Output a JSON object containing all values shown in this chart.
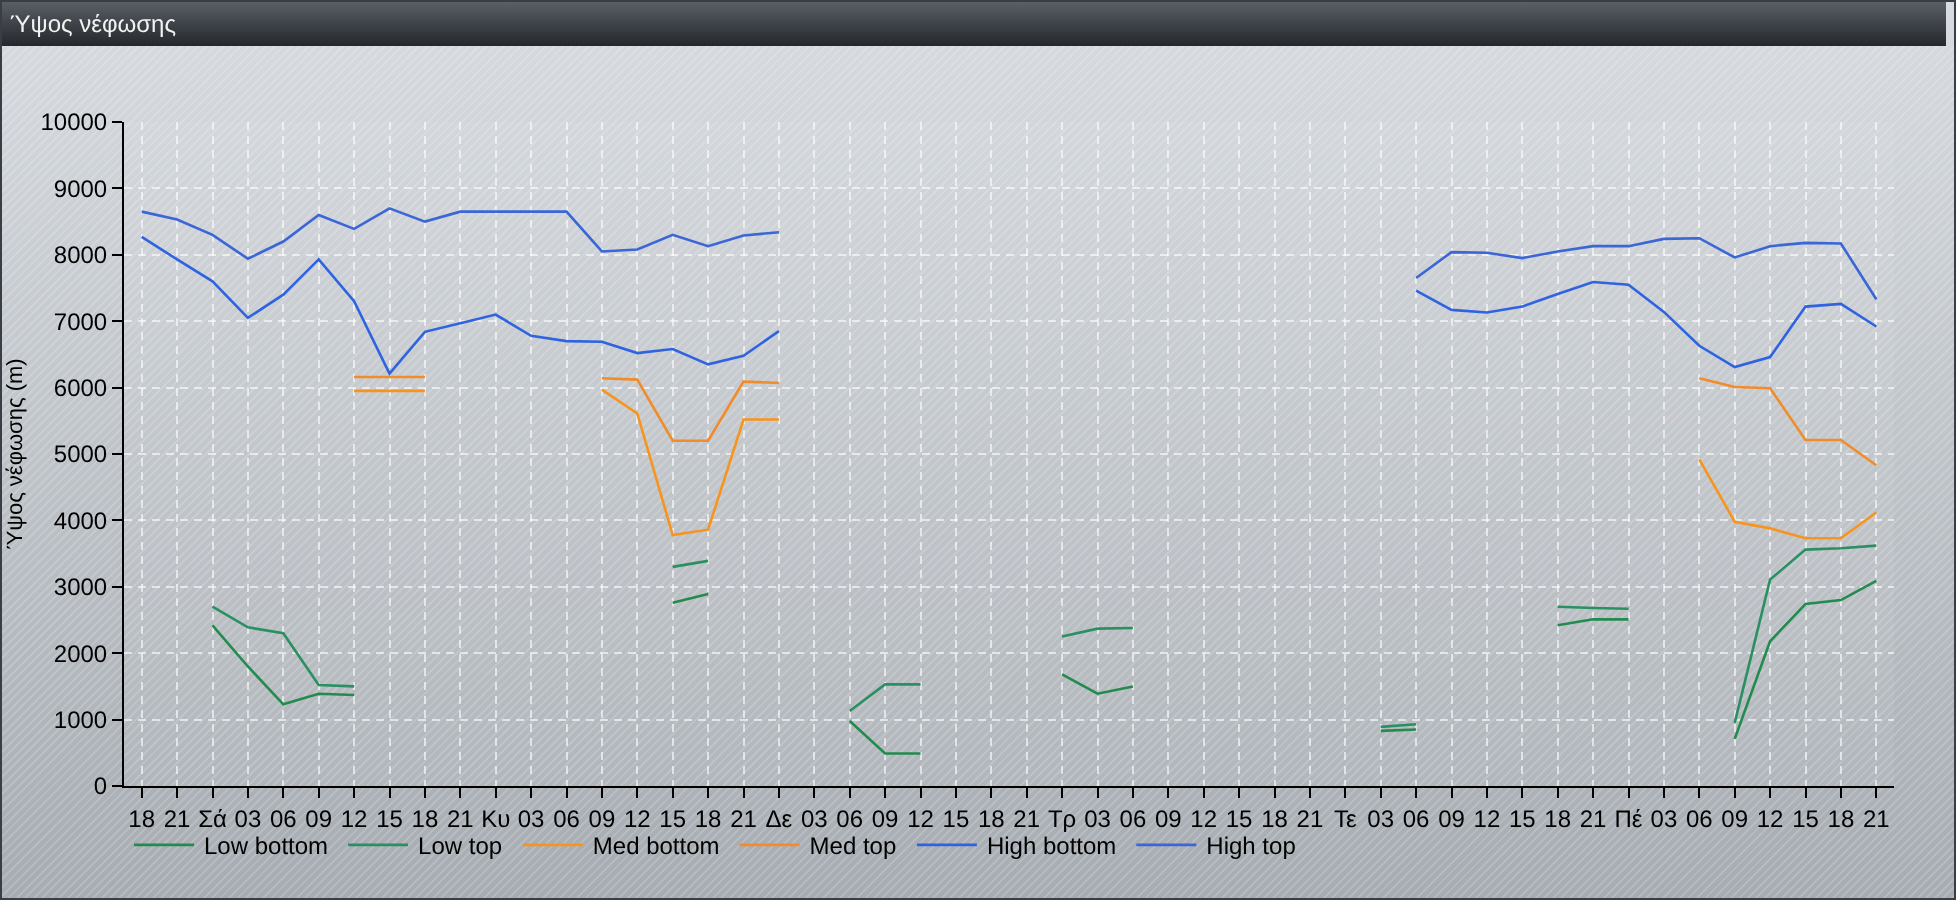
{
  "chart_data": {
    "type": "line",
    "title": "Ύψος νέφωσης",
    "ylabel": "Ύψος νέφωσης (m)",
    "categories": [
      "18",
      "21",
      "Σά",
      "03",
      "06",
      "09",
      "12",
      "15",
      "18",
      "21",
      "Κυ",
      "03",
      "06",
      "09",
      "12",
      "15",
      "18",
      "21",
      "Δε",
      "03",
      "06",
      "09",
      "12",
      "15",
      "18",
      "21",
      "Τρ",
      "03",
      "06",
      "09",
      "12",
      "15",
      "18",
      "21",
      "Τε",
      "03",
      "06",
      "09",
      "12",
      "15",
      "18",
      "21",
      "Πέ",
      "03",
      "06",
      "09",
      "12",
      "15",
      "18",
      "21"
    ],
    "series": [
      {
        "name": "Low bottom",
        "color": "#238b4e",
        "values": [
          null,
          null,
          2420,
          1800,
          1230,
          1390,
          1370,
          null,
          null,
          null,
          null,
          null,
          null,
          null,
          null,
          2760,
          2890,
          null,
          null,
          null,
          980,
          490,
          490,
          null,
          null,
          null,
          1680,
          1390,
          1500,
          null,
          null,
          null,
          null,
          null,
          null,
          830,
          850,
          null,
          null,
          null,
          2420,
          2510,
          2510,
          null,
          null,
          710,
          2180,
          2740,
          2800,
          3090
        ]
      },
      {
        "name": "Low top",
        "color": "#2a9062",
        "values": [
          null,
          null,
          2700,
          2390,
          2300,
          1520,
          1500,
          null,
          null,
          null,
          null,
          null,
          null,
          null,
          null,
          3300,
          3390,
          null,
          null,
          null,
          1130,
          1530,
          1530,
          null,
          null,
          null,
          2250,
          2370,
          2380,
          null,
          null,
          null,
          null,
          null,
          null,
          890,
          930,
          null,
          null,
          null,
          2700,
          2680,
          2670,
          null,
          null,
          950,
          3110,
          3560,
          3580,
          3620
        ]
      },
      {
        "name": "Med bottom",
        "color": "#f7941d",
        "values": [
          null,
          null,
          null,
          null,
          null,
          null,
          5950,
          5950,
          5950,
          null,
          null,
          null,
          null,
          5970,
          5610,
          3780,
          3860,
          5520,
          5520,
          null,
          null,
          null,
          null,
          null,
          null,
          null,
          null,
          null,
          null,
          null,
          null,
          null,
          null,
          null,
          null,
          null,
          null,
          null,
          null,
          null,
          null,
          null,
          null,
          null,
          4920,
          3980,
          3880,
          3730,
          3730,
          4120
        ]
      },
      {
        "name": "Med top",
        "color": "#f08c2a",
        "values": [
          null,
          null,
          null,
          null,
          null,
          null,
          6160,
          6160,
          6160,
          null,
          null,
          null,
          null,
          6140,
          6120,
          5200,
          5200,
          6090,
          6070,
          null,
          null,
          null,
          null,
          null,
          null,
          null,
          null,
          null,
          null,
          null,
          null,
          null,
          null,
          null,
          null,
          null,
          null,
          null,
          null,
          null,
          null,
          null,
          null,
          null,
          6140,
          6010,
          5990,
          5210,
          5210,
          4830
        ]
      },
      {
        "name": "High bottom",
        "color": "#2f63e0",
        "values": [
          8270,
          7930,
          7600,
          7050,
          7400,
          7930,
          7300,
          6210,
          6840,
          6970,
          7100,
          6780,
          6700,
          6690,
          6520,
          6580,
          6350,
          6480,
          6850,
          null,
          null,
          null,
          null,
          null,
          null,
          null,
          null,
          null,
          null,
          null,
          null,
          null,
          null,
          null,
          null,
          null,
          7460,
          7170,
          7130,
          7220,
          7410,
          7590,
          7550,
          7140,
          6630,
          6310,
          6460,
          7220,
          7260,
          6920
        ]
      },
      {
        "name": "High top",
        "color": "#3a66d6",
        "values": [
          8650,
          8530,
          8300,
          7940,
          8200,
          8600,
          8390,
          8700,
          8500,
          8650,
          8650,
          8650,
          8650,
          8050,
          8080,
          8300,
          8130,
          8290,
          8340,
          null,
          null,
          null,
          null,
          null,
          null,
          null,
          null,
          null,
          null,
          null,
          null,
          null,
          null,
          null,
          null,
          null,
          7650,
          8040,
          8030,
          7950,
          8050,
          8130,
          8130,
          8240,
          8250,
          7960,
          8130,
          8180,
          8170,
          7330
        ]
      }
    ],
    "ylim": [
      0,
      10000
    ],
    "yticks": [
      0,
      1000,
      2000,
      3000,
      4000,
      5000,
      6000,
      7000,
      8000,
      9000,
      10000
    ],
    "grid": true,
    "legend": "bottom left"
  }
}
